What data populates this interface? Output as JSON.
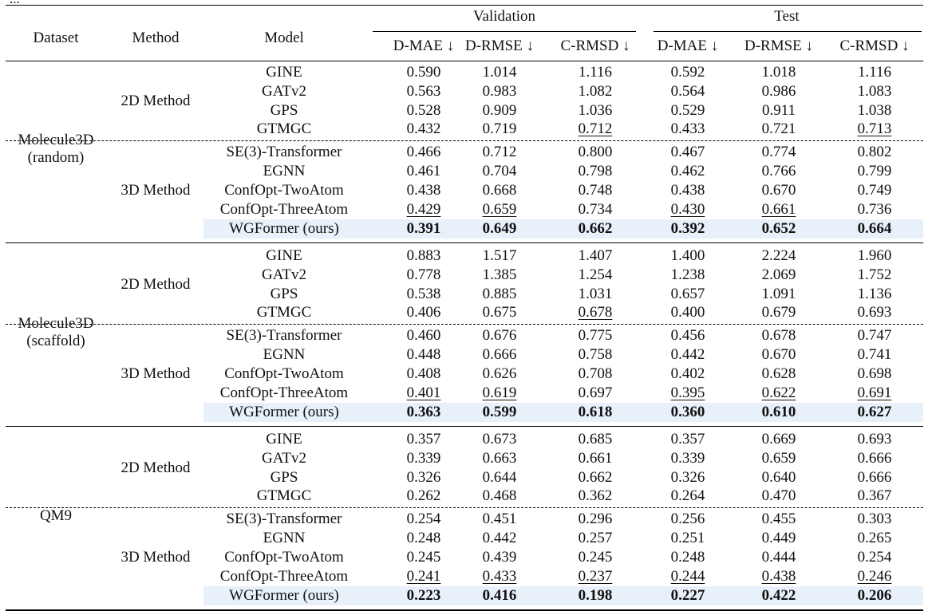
{
  "top_caption": "...",
  "header": {
    "dataset": "Dataset",
    "method": "Method",
    "model": "Model",
    "validation": "Validation",
    "test": "Test",
    "metrics": [
      "D-MAE ↓",
      "D-RMSE ↓",
      "C-RMSD ↓",
      "D-MAE ↓",
      "D-RMSE ↓",
      "C-RMSD ↓"
    ]
  },
  "blocks": [
    {
      "dataset": [
        "Molecule3D",
        "(random)"
      ],
      "groups": [
        {
          "method": "2D Method",
          "rows": [
            {
              "model": "GINE",
              "values": [
                "0.590",
                "1.014",
                "1.116",
                "0.592",
                "1.018",
                "1.116"
              ]
            },
            {
              "model": "GATv2",
              "values": [
                "0.563",
                "0.983",
                "1.082",
                "0.564",
                "0.986",
                "1.083"
              ]
            },
            {
              "model": "GPS",
              "values": [
                "0.528",
                "0.909",
                "1.036",
                "0.529",
                "0.911",
                "1.038"
              ]
            },
            {
              "model": "GTMGC",
              "values": [
                "0.432",
                "0.719",
                "0.712",
                "0.433",
                "0.721",
                "0.713"
              ],
              "underline": [
                2,
                5
              ]
            }
          ]
        },
        {
          "method": "3D Method",
          "rows": [
            {
              "model": "SE(3)-Transformer",
              "values": [
                "0.466",
                "0.712",
                "0.800",
                "0.467",
                "0.774",
                "0.802"
              ]
            },
            {
              "model": "EGNN",
              "values": [
                "0.461",
                "0.704",
                "0.798",
                "0.462",
                "0.766",
                "0.799"
              ]
            },
            {
              "model": "ConfOpt-TwoAtom",
              "values": [
                "0.438",
                "0.668",
                "0.748",
                "0.438",
                "0.670",
                "0.749"
              ]
            },
            {
              "model": "ConfOpt-ThreeAtom",
              "values": [
                "0.429",
                "0.659",
                "0.734",
                "0.430",
                "0.661",
                "0.736"
              ],
              "underline": [
                0,
                1,
                3,
                4
              ]
            },
            {
              "model": "WGFormer (ours)",
              "values": [
                "0.391",
                "0.649",
                "0.662",
                "0.392",
                "0.652",
                "0.664"
              ],
              "ours": true
            }
          ]
        }
      ]
    },
    {
      "dataset": [
        "Molecule3D",
        "(scaffold)"
      ],
      "groups": [
        {
          "method": "2D Method",
          "rows": [
            {
              "model": "GINE",
              "values": [
                "0.883",
                "1.517",
                "1.407",
                "1.400",
                "2.224",
                "1.960"
              ]
            },
            {
              "model": "GATv2",
              "values": [
                "0.778",
                "1.385",
                "1.254",
                "1.238",
                "2.069",
                "1.752"
              ]
            },
            {
              "model": "GPS",
              "values": [
                "0.538",
                "0.885",
                "1.031",
                "0.657",
                "1.091",
                "1.136"
              ]
            },
            {
              "model": "GTMGC",
              "values": [
                "0.406",
                "0.675",
                "0.678",
                "0.400",
                "0.679",
                "0.693"
              ],
              "underline": [
                2
              ]
            }
          ]
        },
        {
          "method": "3D Method",
          "rows": [
            {
              "model": "SE(3)-Transformer",
              "values": [
                "0.460",
                "0.676",
                "0.775",
                "0.456",
                "0.678",
                "0.747"
              ]
            },
            {
              "model": "EGNN",
              "values": [
                "0.448",
                "0.666",
                "0.758",
                "0.442",
                "0.670",
                "0.741"
              ]
            },
            {
              "model": "ConfOpt-TwoAtom",
              "values": [
                "0.408",
                "0.626",
                "0.708",
                "0.402",
                "0.628",
                "0.698"
              ]
            },
            {
              "model": "ConfOpt-ThreeAtom",
              "values": [
                "0.401",
                "0.619",
                "0.697",
                "0.395",
                "0.622",
                "0.691"
              ],
              "underline": [
                0,
                1,
                3,
                4,
                5
              ]
            },
            {
              "model": "WGFormer (ours)",
              "values": [
                "0.363",
                "0.599",
                "0.618",
                "0.360",
                "0.610",
                "0.627"
              ],
              "ours": true
            }
          ]
        }
      ]
    },
    {
      "dataset": [
        "QM9"
      ],
      "groups": [
        {
          "method": "2D Method",
          "rows": [
            {
              "model": "GINE",
              "values": [
                "0.357",
                "0.673",
                "0.685",
                "0.357",
                "0.669",
                "0.693"
              ]
            },
            {
              "model": "GATv2",
              "values": [
                "0.339",
                "0.663",
                "0.661",
                "0.339",
                "0.659",
                "0.666"
              ]
            },
            {
              "model": "GPS",
              "values": [
                "0.326",
                "0.644",
                "0.662",
                "0.326",
                "0.640",
                "0.666"
              ]
            },
            {
              "model": "GTMGC",
              "values": [
                "0.262",
                "0.468",
                "0.362",
                "0.264",
                "0.470",
                "0.367"
              ]
            }
          ]
        },
        {
          "method": "3D Method",
          "rows": [
            {
              "model": "SE(3)-Transformer",
              "values": [
                "0.254",
                "0.451",
                "0.296",
                "0.256",
                "0.455",
                "0.303"
              ]
            },
            {
              "model": "EGNN",
              "values": [
                "0.248",
                "0.442",
                "0.257",
                "0.251",
                "0.449",
                "0.265"
              ]
            },
            {
              "model": "ConfOpt-TwoAtom",
              "values": [
                "0.245",
                "0.439",
                "0.245",
                "0.248",
                "0.444",
                "0.254"
              ]
            },
            {
              "model": "ConfOpt-ThreeAtom",
              "values": [
                "0.241",
                "0.433",
                "0.237",
                "0.244",
                "0.438",
                "0.246"
              ],
              "underline": [
                0,
                1,
                2,
                3,
                4,
                5
              ]
            },
            {
              "model": "WGFormer (ours)",
              "values": [
                "0.223",
                "0.416",
                "0.198",
                "0.227",
                "0.422",
                "0.206"
              ],
              "ours": true
            }
          ]
        }
      ]
    }
  ],
  "colors": {
    "highlight": "#e8f1fa",
    "text": "#111111",
    "rule": "#000000"
  }
}
